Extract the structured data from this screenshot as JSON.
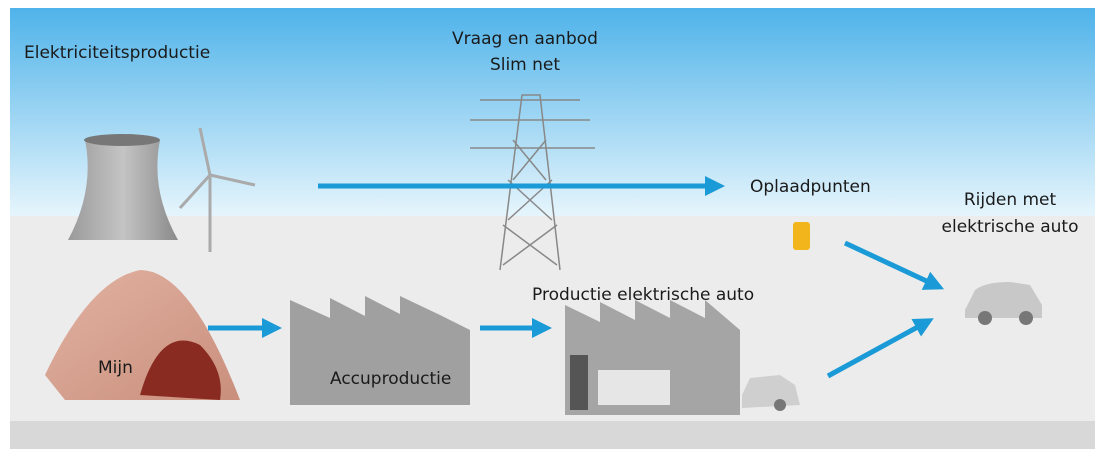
{
  "nodes": [
    {
      "label": "Elektriciteitsproductie"
    },
    {
      "lines": [
        "Vraag en aanbod",
        "Slim net"
      ]
    },
    {
      "label": "Oplaadpunten"
    },
    {
      "lines": [
        "Rijden met",
        "elektrische auto"
      ]
    },
    {
      "label": "Mijn"
    },
    {
      "label": "Accuproductie"
    },
    {
      "label": "Productie elektrische auto"
    }
  ]
}
